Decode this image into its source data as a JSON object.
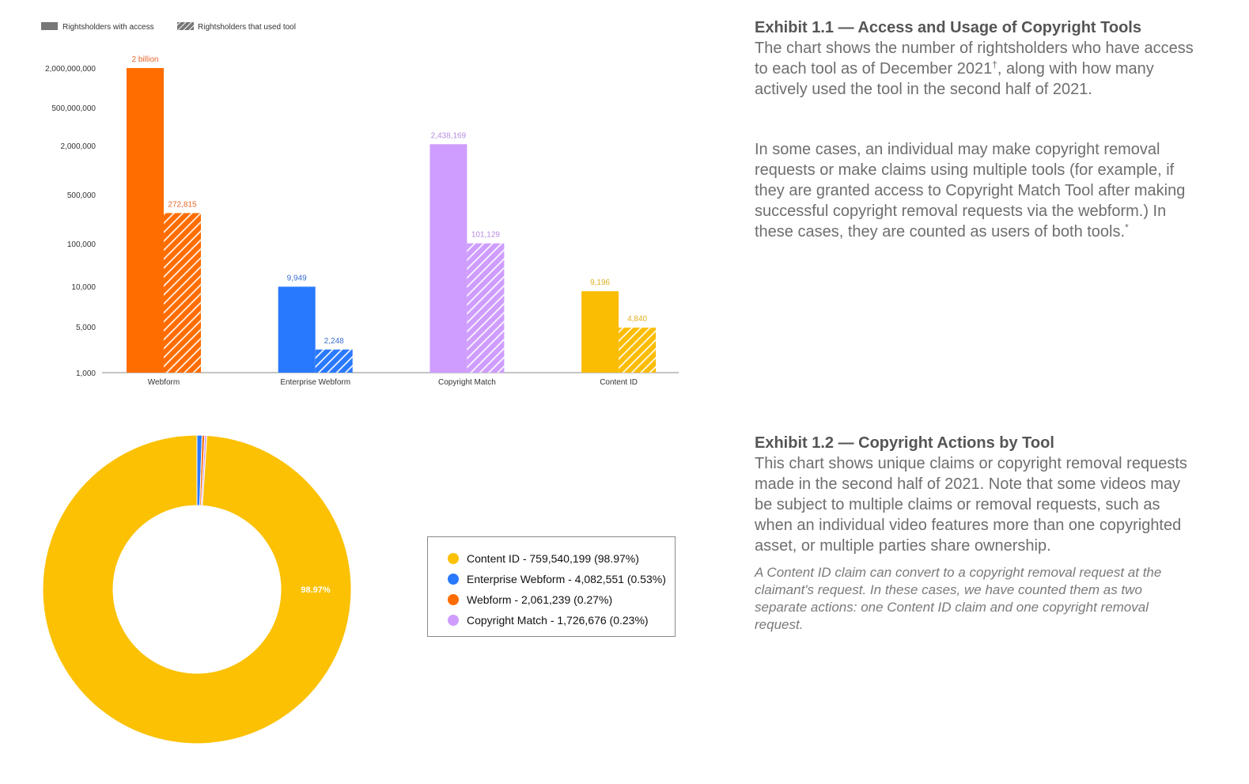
{
  "chart_data": [
    {
      "type": "bar",
      "scale": "log",
      "legend": {
        "position": "top-left",
        "items": [
          {
            "label": "Rightsholders with access",
            "pattern": "solid"
          },
          {
            "label": "Rightsholders that used tool",
            "pattern": "hatched"
          }
        ]
      },
      "y_ticks": [
        "2,000,000,000",
        "500,000,000",
        "2,000,000",
        "500,000",
        "100,000",
        "10,000",
        "5,000",
        "1,000"
      ],
      "ylim": [
        1000,
        2000000000
      ],
      "grid": false,
      "categories": [
        "Webform",
        "Enterprise Webform",
        "Copyright Match",
        "Content ID"
      ],
      "colors": [
        "#ff6d00",
        "#2979ff",
        "#cf9dff",
        "#fbbc04"
      ],
      "label_colors": [
        "#e8662a",
        "#3a6fd0",
        "#b78be0",
        "#e0b020"
      ],
      "series": [
        {
          "name": "Rightsholders with access",
          "values": [
            2000000000,
            9949,
            2438169,
            9196
          ],
          "labels": [
            "2 billion",
            "9,949",
            "2,438,169",
            "9,196"
          ]
        },
        {
          "name": "Rightsholders that used tool",
          "values": [
            272815,
            2248,
            101129,
            4840
          ],
          "labels": [
            "272,815",
            "2,248",
            "101,129",
            "4,840"
          ]
        }
      ]
    },
    {
      "type": "pie",
      "donut": true,
      "slices": [
        {
          "label": "Content ID - 759,540,199 (98.97%)",
          "value": 759540199,
          "percent": 98.97,
          "color": "#fbc102"
        },
        {
          "label": "Enterprise Webform - 4,082,551 (0.53%)",
          "value": 4082551,
          "percent": 0.53,
          "color": "#2979ff"
        },
        {
          "label": "Webform - 2,061,239 (0.27%)",
          "value": 2061239,
          "percent": 0.27,
          "color": "#ff6d00"
        },
        {
          "label": "Copyright Match - 1,726,676 (0.23%)",
          "value": 1726676,
          "percent": 0.23,
          "color": "#cf9dff"
        }
      ],
      "slice_label": "98.97%",
      "legend_position": "right"
    }
  ],
  "exhibit1": {
    "title": "Exhibit 1.1 — Access and Usage of Copyright Tools",
    "desc_a": "The chart shows the number of rightsholders who have access to each tool as of December 2021",
    "desc_sup": "†",
    "desc_b": ", along with how many actively used the tool in the second half of 2021.",
    "para2": "In some cases, an individual may make copyright removal requests or make claims using multiple tools (for example, if they are granted access to Copyright Match Tool after making successful copyright removal requests via the webform.) In these cases, they are counted as users of both tools.",
    "para2_sup": "*"
  },
  "exhibit2": {
    "title": "Exhibit 1.2 — Copyright Actions by Tool",
    "desc": "This chart shows unique claims or copyright removal requests made in the second half of 2021. Note that some videos may be subject to multiple claims or removal requests, such as when an individual video features more than one copyrighted asset, or multiple parties share ownership.",
    "note": "A Content ID claim can convert to a copyright removal request at the claimant's request. In these cases, we have counted them as two separate actions: one Content ID claim and one copyright removal request."
  }
}
